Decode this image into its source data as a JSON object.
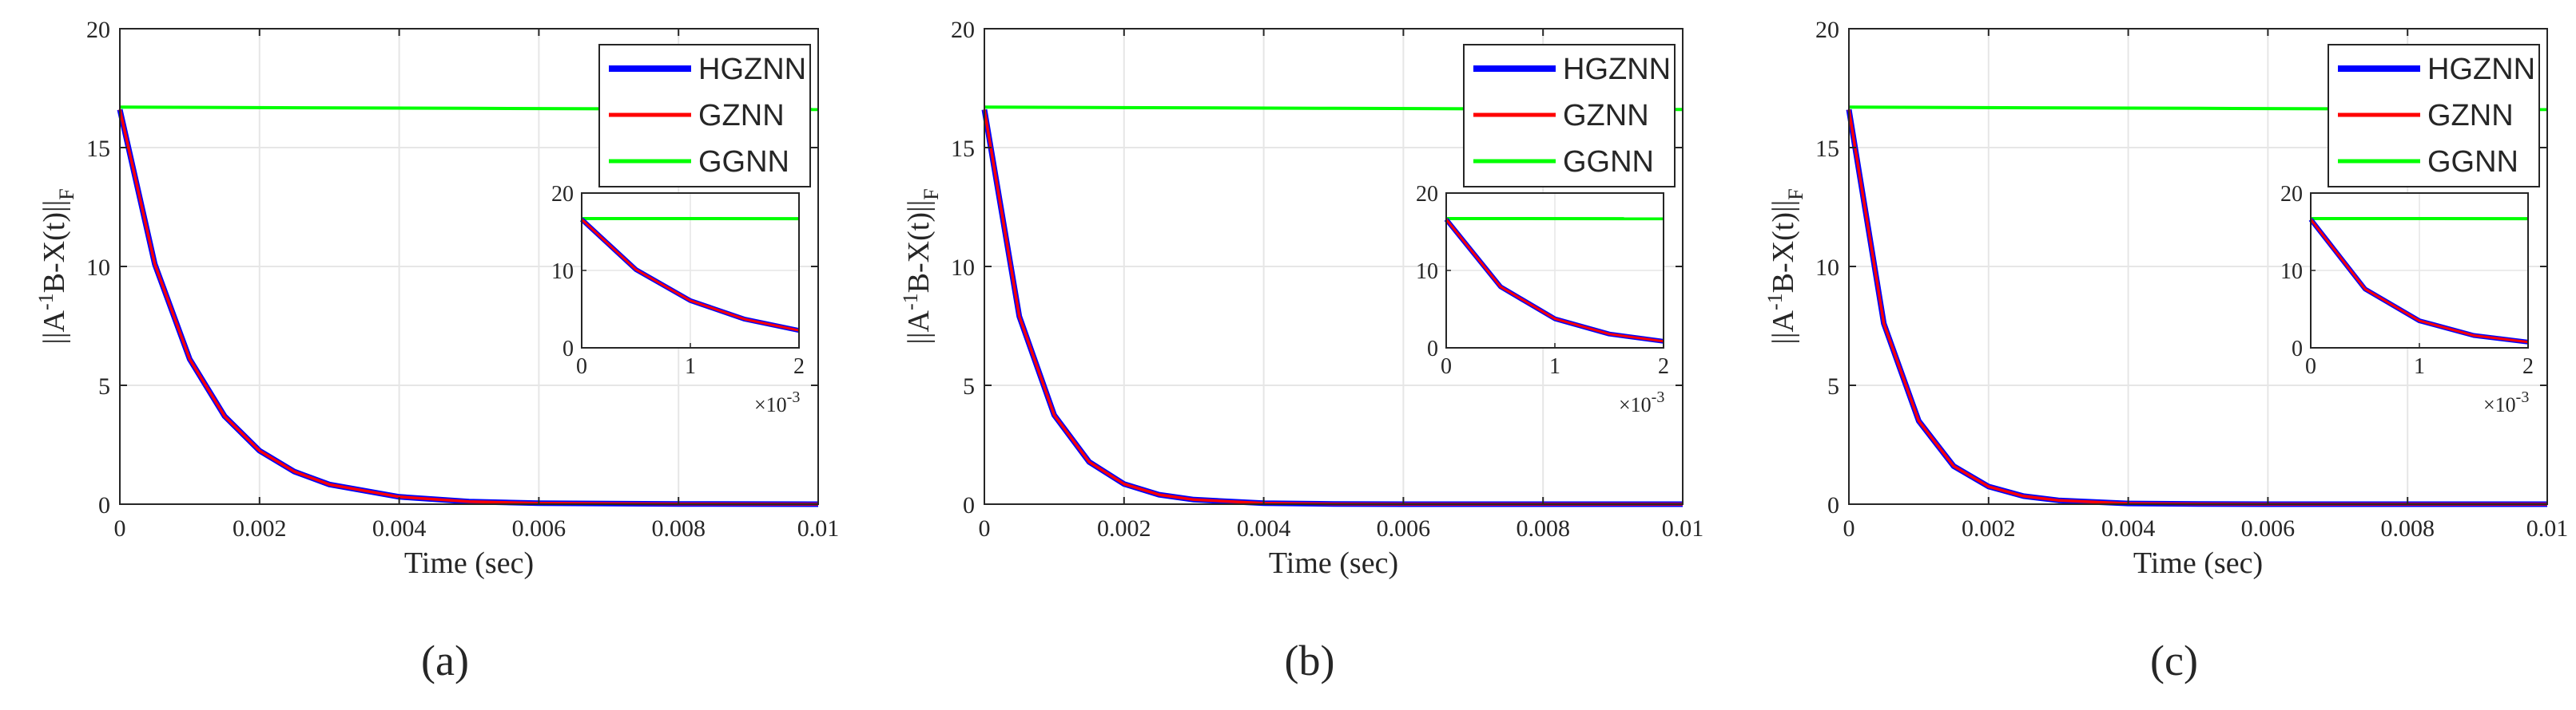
{
  "colors": {
    "HGZNN": "#0000ff",
    "GZNN": "#ff0000",
    "GGNN": "#00ff00",
    "grid": "#e6e6e6",
    "axis": "#262626"
  },
  "chart_data": [
    {
      "type": "line",
      "panel_label": "(a)",
      "xlabel": "Time (sec)",
      "ylabel_parts": {
        "a": "||A",
        "sup": "-1",
        "mid": "B-X(t)||",
        "sub": "F"
      },
      "xlim": [
        0,
        0.01
      ],
      "ylim": [
        0,
        20
      ],
      "xticks": [
        0,
        0.002,
        0.004,
        0.006,
        0.008,
        0.01
      ],
      "xtick_labels": [
        "0",
        "0.002",
        "0.004",
        "0.006",
        "0.008",
        "0.01"
      ],
      "yticks": [
        0,
        5,
        10,
        15,
        20
      ],
      "ytick_labels": [
        "0",
        "5",
        "10",
        "15",
        "20"
      ],
      "grid": true,
      "legend": {
        "position": "top-right",
        "entries": [
          "HGZNN",
          "GZNN",
          "GGNN"
        ]
      },
      "series": [
        {
          "name": "HGZNN",
          "x": [
            0,
            0.0005,
            0.001,
            0.0015,
            0.002,
            0.0025,
            0.003,
            0.004,
            0.005,
            0.006,
            0.008,
            0.01
          ],
          "y": [
            16.6,
            10.1,
            6.1,
            3.7,
            2.25,
            1.37,
            0.83,
            0.31,
            0.11,
            0.04,
            0.01,
            0.0
          ]
        },
        {
          "name": "GZNN",
          "x": [
            0,
            0.0005,
            0.001,
            0.0015,
            0.002,
            0.0025,
            0.003,
            0.004,
            0.005,
            0.006,
            0.008,
            0.01
          ],
          "y": [
            16.6,
            10.1,
            6.1,
            3.7,
            2.25,
            1.37,
            0.83,
            0.31,
            0.11,
            0.04,
            0.01,
            0.0
          ]
        },
        {
          "name": "GGNN",
          "x": [
            0,
            0.005,
            0.01
          ],
          "y": [
            16.7,
            16.65,
            16.6
          ]
        }
      ],
      "inset": {
        "xlim": [
          0,
          0.002
        ],
        "ylim": [
          0,
          20
        ],
        "xticks": [
          0,
          0.001,
          0.002
        ],
        "xtick_labels": [
          "0",
          "1",
          "2"
        ],
        "yticks": [
          0,
          10,
          20
        ],
        "ytick_labels": [
          "0",
          "10",
          "20"
        ],
        "x_multiplier": {
          "base": "×10",
          "exp": "-3"
        }
      }
    },
    {
      "type": "line",
      "panel_label": "(b)",
      "xlabel": "Time (sec)",
      "ylabel_parts": {
        "a": "||A",
        "sup": "-1",
        "mid": "B-X(t)||",
        "sub": "F"
      },
      "xlim": [
        0,
        0.01
      ],
      "ylim": [
        0,
        20
      ],
      "xticks": [
        0,
        0.002,
        0.004,
        0.006,
        0.008,
        0.01
      ],
      "xtick_labels": [
        "0",
        "0.002",
        "0.004",
        "0.006",
        "0.008",
        "0.01"
      ],
      "yticks": [
        0,
        5,
        10,
        15,
        20
      ],
      "ytick_labels": [
        "0",
        "5",
        "10",
        "15",
        "20"
      ],
      "grid": true,
      "legend": {
        "position": "top-right",
        "entries": [
          "HGZNN",
          "GZNN",
          "GGNN"
        ]
      },
      "series": [
        {
          "name": "HGZNN",
          "x": [
            0,
            0.0005,
            0.001,
            0.0015,
            0.002,
            0.0025,
            0.003,
            0.004,
            0.005,
            0.006,
            0.008,
            0.01
          ],
          "y": [
            16.6,
            7.9,
            3.75,
            1.78,
            0.85,
            0.4,
            0.19,
            0.04,
            0.01,
            0.0,
            0.0,
            0.0
          ]
        },
        {
          "name": "GZNN",
          "x": [
            0,
            0.0005,
            0.001,
            0.0015,
            0.002,
            0.0025,
            0.003,
            0.004,
            0.005,
            0.006,
            0.008,
            0.01
          ],
          "y": [
            16.6,
            7.9,
            3.75,
            1.78,
            0.85,
            0.4,
            0.19,
            0.04,
            0.01,
            0.0,
            0.0,
            0.0
          ]
        },
        {
          "name": "GGNN",
          "x": [
            0,
            0.005,
            0.01
          ],
          "y": [
            16.7,
            16.65,
            16.6
          ]
        }
      ],
      "inset": {
        "xlim": [
          0,
          0.002
        ],
        "ylim": [
          0,
          20
        ],
        "xticks": [
          0,
          0.001,
          0.002
        ],
        "xtick_labels": [
          "0",
          "1",
          "2"
        ],
        "yticks": [
          0,
          10,
          20
        ],
        "ytick_labels": [
          "0",
          "10",
          "20"
        ],
        "x_multiplier": {
          "base": "×10",
          "exp": "-3"
        }
      }
    },
    {
      "type": "line",
      "panel_label": "(c)",
      "xlabel": "Time (sec)",
      "ylabel_parts": {
        "a": "||A",
        "sup": "-1",
        "mid": "B-X(t)||",
        "sub": "F"
      },
      "xlim": [
        0,
        0.01
      ],
      "ylim": [
        0,
        20
      ],
      "xticks": [
        0,
        0.002,
        0.004,
        0.006,
        0.008,
        0.01
      ],
      "xtick_labels": [
        "0",
        "0.002",
        "0.004",
        "0.006",
        "0.008",
        "0.01"
      ],
      "yticks": [
        0,
        5,
        10,
        15,
        20
      ],
      "ytick_labels": [
        "0",
        "5",
        "10",
        "15",
        "20"
      ],
      "grid": true,
      "legend": {
        "position": "top-right",
        "entries": [
          "HGZNN",
          "GZNN",
          "GGNN"
        ]
      },
      "series": [
        {
          "name": "HGZNN",
          "x": [
            0,
            0.0005,
            0.001,
            0.0015,
            0.002,
            0.0025,
            0.003,
            0.004,
            0.005,
            0.006,
            0.008,
            0.01
          ],
          "y": [
            16.6,
            7.6,
            3.5,
            1.6,
            0.74,
            0.34,
            0.16,
            0.03,
            0.01,
            0.0,
            0.0,
            0.0
          ]
        },
        {
          "name": "GZNN",
          "x": [
            0,
            0.0005,
            0.001,
            0.0015,
            0.002,
            0.0025,
            0.003,
            0.004,
            0.005,
            0.006,
            0.008,
            0.01
          ],
          "y": [
            16.6,
            7.6,
            3.5,
            1.6,
            0.74,
            0.34,
            0.16,
            0.03,
            0.01,
            0.0,
            0.0,
            0.0
          ]
        },
        {
          "name": "GGNN",
          "x": [
            0,
            0.005,
            0.01
          ],
          "y": [
            16.7,
            16.65,
            16.6
          ]
        }
      ],
      "inset": {
        "xlim": [
          0,
          0.002
        ],
        "ylim": [
          0,
          20
        ],
        "xticks": [
          0,
          0.001,
          0.002
        ],
        "xtick_labels": [
          "0",
          "1",
          "2"
        ],
        "yticks": [
          0,
          10,
          20
        ],
        "ytick_labels": [
          "0",
          "10",
          "20"
        ],
        "x_multiplier": {
          "base": "×10",
          "exp": "-3"
        }
      }
    }
  ]
}
